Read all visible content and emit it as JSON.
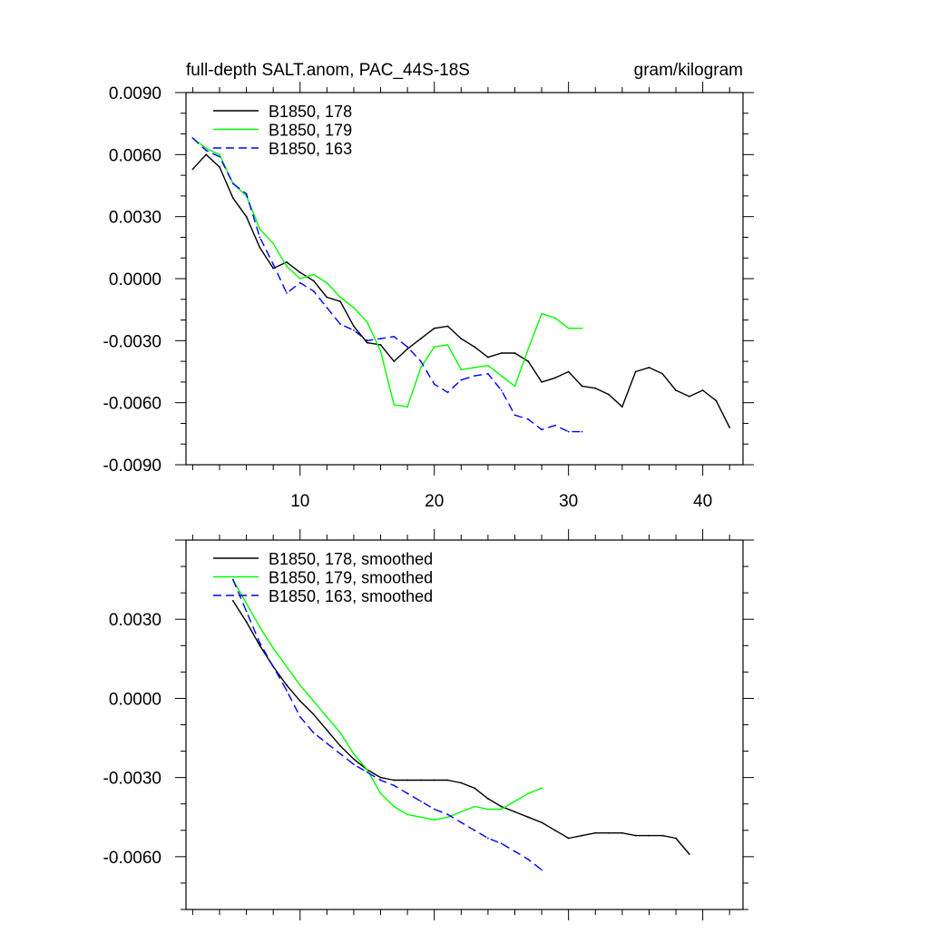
{
  "chart_data": [
    {
      "type": "line",
      "title_left": "full-depth SALT.anom, PAC_44S-18S",
      "title_right": "gram/kilogram",
      "xlabel": "",
      "ylabel": "",
      "xlim": [
        1.5,
        43
      ],
      "ylim": [
        -0.009,
        0.009
      ],
      "x_ticks": [
        10,
        20,
        30,
        40
      ],
      "x_tick_labels": [
        "10",
        "20",
        "30",
        "40"
      ],
      "y_ticks": [
        0.009,
        0.006,
        0.003,
        0.0,
        -0.003,
        -0.006,
        -0.009
      ],
      "y_tick_labels": [
        "0.0090",
        "0.0060",
        "0.0030",
        "0.0000",
        "-0.0030",
        "-0.0060",
        "-0.0090"
      ],
      "legend_position": "top-left",
      "series": [
        {
          "name": "B1850, 178",
          "color": "#000000",
          "dash": "solid",
          "x": [
            2,
            3,
            4,
            5,
            6,
            7,
            8,
            9,
            10,
            11,
            12,
            13,
            14,
            15,
            16,
            17,
            18,
            19,
            20,
            21,
            22,
            23,
            24,
            25,
            26,
            27,
            28,
            29,
            30,
            31,
            32,
            33,
            34,
            35,
            36,
            37,
            38,
            39,
            40,
            41,
            42
          ],
          "values": [
            0.0053,
            0.006,
            0.0054,
            0.0039,
            0.003,
            0.0015,
            0.0005,
            0.0008,
            0.0003,
            -0.0001,
            -0.0009,
            -0.0011,
            -0.0023,
            -0.0031,
            -0.0032,
            -0.004,
            -0.0034,
            -0.0029,
            -0.0024,
            -0.0023,
            -0.0029,
            -0.0033,
            -0.0038,
            -0.0036,
            -0.0036,
            -0.004,
            -0.005,
            -0.0048,
            -0.0045,
            -0.0052,
            -0.0053,
            -0.0056,
            -0.0062,
            -0.0045,
            -0.0043,
            -0.0046,
            -0.0054,
            -0.0057,
            -0.0054,
            -0.0059,
            -0.0072
          ]
        },
        {
          "name": "B1850, 179",
          "color": "#00ff00",
          "dash": "solid",
          "x": [
            2,
            3,
            4,
            5,
            6,
            7,
            8,
            9,
            10,
            11,
            12,
            13,
            14,
            15,
            16,
            17,
            18,
            19,
            20,
            21,
            22,
            23,
            24,
            25,
            26,
            27,
            28,
            29,
            30,
            31
          ],
          "values": [
            0.0068,
            0.0063,
            0.006,
            0.0046,
            0.004,
            0.0024,
            0.0017,
            0.0006,
            0.0,
            0.0002,
            -0.0002,
            -0.0009,
            -0.0014,
            -0.0021,
            -0.0035,
            -0.0061,
            -0.0062,
            -0.0043,
            -0.0033,
            -0.0032,
            -0.0044,
            -0.0043,
            -0.0042,
            -0.0047,
            -0.0052,
            -0.0034,
            -0.0017,
            -0.0019,
            -0.0024,
            -0.0024
          ]
        },
        {
          "name": "B1850, 163",
          "color": "#0000ff",
          "dash": "dashed",
          "x": [
            2,
            3,
            4,
            5,
            6,
            7,
            8,
            9,
            10,
            11,
            12,
            13,
            14,
            15,
            16,
            17,
            18,
            19,
            20,
            21,
            22,
            23,
            24,
            25,
            26,
            27,
            28,
            29,
            30,
            31
          ],
          "values": [
            0.0068,
            0.0062,
            0.0059,
            0.0046,
            0.0041,
            0.002,
            0.0007,
            -0.0007,
            -0.0002,
            -0.0006,
            -0.0014,
            -0.0022,
            -0.0025,
            -0.003,
            -0.0029,
            -0.0028,
            -0.0033,
            -0.004,
            -0.0051,
            -0.0055,
            -0.0049,
            -0.0047,
            -0.0046,
            -0.0054,
            -0.0066,
            -0.0068,
            -0.0073,
            -0.0071,
            -0.0074,
            -0.0074
          ]
        }
      ]
    },
    {
      "type": "line",
      "xlabel": "",
      "ylabel": "",
      "xlim": [
        1.5,
        43
      ],
      "ylim": [
        -0.008,
        0.006
      ],
      "x_ticks": [
        10,
        20,
        30,
        40
      ],
      "x_tick_labels": [],
      "y_ticks": [
        0.003,
        0.0,
        -0.003,
        -0.006
      ],
      "y_tick_labels": [
        "0.0030",
        "0.0000",
        "-0.0030",
        "-0.0060"
      ],
      "legend_position": "top-left",
      "series": [
        {
          "name": "B1850, 178, smoothed",
          "color": "#000000",
          "dash": "solid",
          "x": [
            5,
            6,
            7,
            8,
            9,
            10,
            11,
            12,
            13,
            14,
            15,
            16,
            17,
            18,
            19,
            20,
            21,
            22,
            23,
            24,
            25,
            26,
            27,
            28,
            29,
            30,
            31,
            32,
            33,
            34,
            35,
            36,
            37,
            38,
            39
          ],
          "values": [
            0.0037,
            0.0029,
            0.002,
            0.0012,
            0.0005,
            -0.0001,
            -0.0006,
            -0.0012,
            -0.0018,
            -0.0023,
            -0.0027,
            -0.003,
            -0.0031,
            -0.0031,
            -0.0031,
            -0.0031,
            -0.0031,
            -0.0032,
            -0.0034,
            -0.0038,
            -0.0041,
            -0.0043,
            -0.0045,
            -0.0047,
            -0.005,
            -0.0053,
            -0.0052,
            -0.0051,
            -0.0051,
            -0.0051,
            -0.0052,
            -0.0052,
            -0.0052,
            -0.0053,
            -0.0059
          ]
        },
        {
          "name": "B1850, 179, smoothed",
          "color": "#00ff00",
          "dash": "solid",
          "x": [
            5,
            6,
            7,
            8,
            9,
            10,
            11,
            12,
            13,
            14,
            15,
            16,
            17,
            18,
            19,
            20,
            21,
            22,
            23,
            24,
            25,
            26,
            27,
            28
          ],
          "values": [
            0.0045,
            0.0036,
            0.0027,
            0.0019,
            0.0012,
            0.0005,
            -0.0001,
            -0.0007,
            -0.0013,
            -0.0021,
            -0.0027,
            -0.0036,
            -0.0041,
            -0.0044,
            -0.0045,
            -0.0046,
            -0.0045,
            -0.0043,
            -0.0041,
            -0.0042,
            -0.0042,
            -0.0039,
            -0.0036,
            -0.0034
          ]
        },
        {
          "name": "B1850, 163, smoothed",
          "color": "#0000ff",
          "dash": "dashed",
          "x": [
            5,
            6,
            7,
            8,
            9,
            10,
            11,
            12,
            13,
            14,
            15,
            16,
            17,
            18,
            19,
            20,
            21,
            22,
            23,
            24,
            25,
            26,
            27,
            28
          ],
          "values": [
            0.0045,
            0.0033,
            0.0021,
            0.0012,
            0.0003,
            -0.0007,
            -0.0013,
            -0.0017,
            -0.0021,
            -0.0025,
            -0.0028,
            -0.0031,
            -0.0033,
            -0.0036,
            -0.0039,
            -0.0042,
            -0.0044,
            -0.0047,
            -0.005,
            -0.0053,
            -0.0055,
            -0.0058,
            -0.0061,
            -0.0065
          ]
        }
      ]
    }
  ]
}
